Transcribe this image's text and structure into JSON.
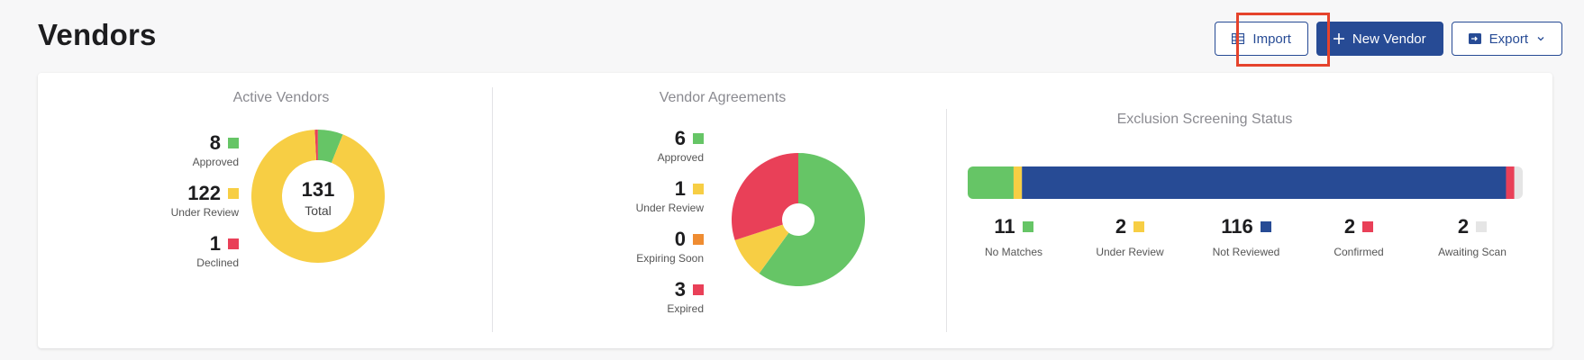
{
  "page": {
    "title": "Vendors"
  },
  "toolbar": {
    "import_label": "Import",
    "new_vendor_label": "New Vendor",
    "export_label": "Export"
  },
  "colors": {
    "primary": "#274b95",
    "green": "#66c566",
    "yellow": "#f7ce44",
    "red": "#e94058",
    "orange": "#ef8c31",
    "blue": "#274b95",
    "gray": "#e5e5e5",
    "highlight": "#e5432c"
  },
  "active_vendors": {
    "title": "Active Vendors",
    "total": "131",
    "total_label": "Total",
    "items": [
      {
        "value": "8",
        "label": "Approved",
        "color": "#66c566"
      },
      {
        "value": "122",
        "label": "Under Review",
        "color": "#f7ce44"
      },
      {
        "value": "1",
        "label": "Declined",
        "color": "#e94058"
      }
    ]
  },
  "vendor_agreements": {
    "title": "Vendor Agreements",
    "items": [
      {
        "value": "6",
        "label": "Approved",
        "color": "#66c566"
      },
      {
        "value": "1",
        "label": "Under Review",
        "color": "#f7ce44"
      },
      {
        "value": "0",
        "label": "Expiring Soon",
        "color": "#ef8c31"
      },
      {
        "value": "3",
        "label": "Expired",
        "color": "#e94058"
      }
    ]
  },
  "exclusion_screening": {
    "title": "Exclusion Screening Status",
    "items": [
      {
        "value": "11",
        "label": "No Matches",
        "color": "#66c566"
      },
      {
        "value": "2",
        "label": "Under Review",
        "color": "#f7ce44"
      },
      {
        "value": "116",
        "label": "Not Reviewed",
        "color": "#274b95"
      },
      {
        "value": "2",
        "label": "Confirmed",
        "color": "#e94058"
      },
      {
        "value": "2",
        "label": "Awaiting Scan",
        "color": "#e5e5e5"
      }
    ]
  }
}
